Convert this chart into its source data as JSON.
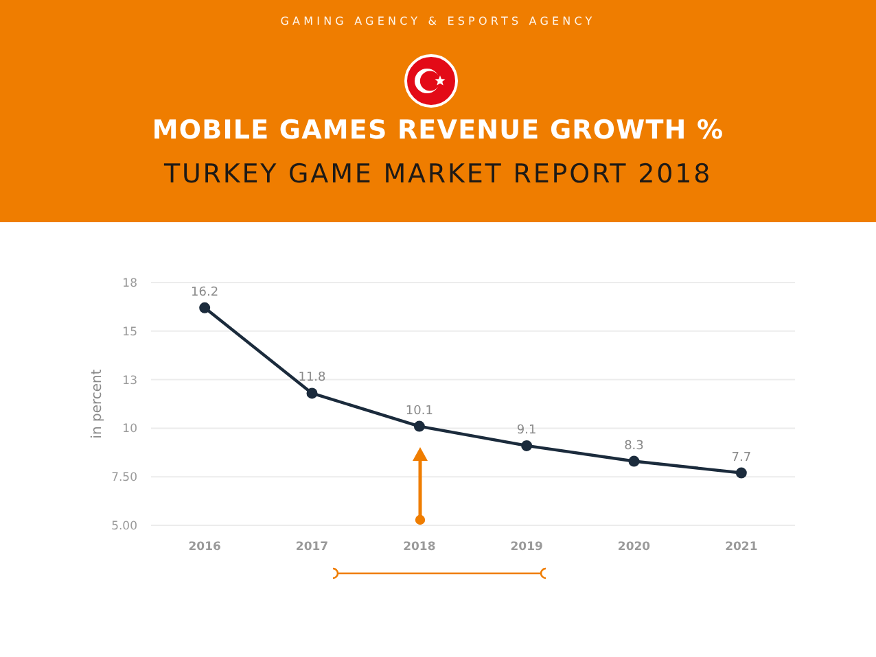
{
  "chart_data": {
    "type": "line",
    "title": "MOBILE GAMES REVENUE GROWTH %",
    "subtitle": "TURKEY GAME MARKET REPORT 2018",
    "ylabel": "in percent",
    "annotations": [
      "GAMING AGENCY & ESPORTS AGENCY"
    ],
    "categories": [
      "2016",
      "2017",
      "2018",
      "2019",
      "2020",
      "2021"
    ],
    "series": [
      {
        "color": "#1b2b3c",
        "values": [
          16.2,
          11.8,
          10.1,
          9.1,
          8.3,
          7.7
        ]
      }
    ],
    "ylim": [
      5,
      17.5
    ],
    "yticks": [
      {
        "value": 5,
        "label": "5.00"
      },
      {
        "value": 7.5,
        "label": "7.50"
      },
      10,
      {
        "value": 12.5,
        "label": "13"
      },
      15,
      {
        "value": 17.5,
        "label": "18"
      }
    ],
    "grid": "y",
    "marker": "circle",
    "line_style": "solid",
    "data_labels": true
  }
}
